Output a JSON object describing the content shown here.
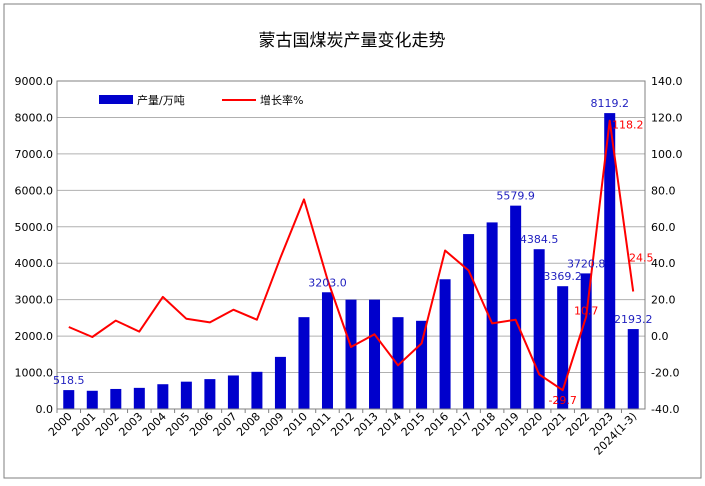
{
  "chart_data": {
    "type": "bar+line",
    "title": "蒙古国煤炭产量变化走势",
    "categories": [
      "2000",
      "2001",
      "2002",
      "2003",
      "2004",
      "2005",
      "2006",
      "2007",
      "2008",
      "2009",
      "2010",
      "2011",
      "2012",
      "2013",
      "2014",
      "2015",
      "2016",
      "2017",
      "2018",
      "2019",
      "2020",
      "2021",
      "2022",
      "2023",
      "2024(1-3)"
    ],
    "series": [
      {
        "name": "产量/万吨",
        "type": "bar",
        "axis": "left",
        "color": "#0000CC",
        "values": [
          518.5,
          500,
          550,
          580,
          680,
          750,
          820,
          920,
          1020,
          1430,
          2520,
          3203.0,
          3000,
          3000,
          2520,
          2420,
          3560,
          4800,
          5120,
          5579.9,
          4384.5,
          3369.2,
          3720.8,
          8119.2,
          2193.2
        ]
      },
      {
        "name": "增长率%",
        "type": "line",
        "axis": "right",
        "color": "#FF0000",
        "values": [
          5,
          -0.5,
          8.5,
          2.5,
          21.5,
          9.5,
          7.5,
          14.5,
          9,
          43,
          75,
          31,
          -6,
          1,
          -16,
          -4,
          47,
          36,
          7,
          9,
          -21,
          -29.7,
          10.7,
          118.2,
          24.5
        ]
      }
    ],
    "left_axis": {
      "min": 0,
      "max": 9000,
      "step": 1000,
      "ticks": [
        "0.0",
        "1000.0",
        "2000.0",
        "3000.0",
        "4000.0",
        "5000.0",
        "6000.0",
        "7000.0",
        "8000.0",
        "9000.0"
      ]
    },
    "right_axis": {
      "min": -40,
      "max": 140,
      "step": 20,
      "ticks": [
        "-40.0",
        "-20.0",
        "0.0",
        "20.0",
        "40.0",
        "60.0",
        "80.0",
        "100.0",
        "120.0",
        "140.0"
      ]
    },
    "bar_labels": [
      {
        "index": 0,
        "text": "518.5"
      },
      {
        "index": 11,
        "text": "3203.0"
      },
      {
        "index": 19,
        "text": "5579.9"
      },
      {
        "index": 20,
        "text": "4384.5"
      },
      {
        "index": 21,
        "text": "3369.2"
      },
      {
        "index": 22,
        "text": "3720.8"
      },
      {
        "index": 23,
        "text": "8119.2"
      },
      {
        "index": 24,
        "text": "2193.2"
      }
    ],
    "line_labels": [
      {
        "index": 21,
        "text": "-29.7"
      },
      {
        "index": 22,
        "text": "10.7"
      },
      {
        "index": 23,
        "text": "118.2"
      },
      {
        "index": 24,
        "text": "24.5"
      }
    ],
    "grid": true,
    "legend_position": "top-left",
    "colors": {
      "bar": "#0000CC",
      "line": "#FF0000",
      "grid": "#b0b0b0",
      "label_blue": "#1f1fbf"
    }
  }
}
